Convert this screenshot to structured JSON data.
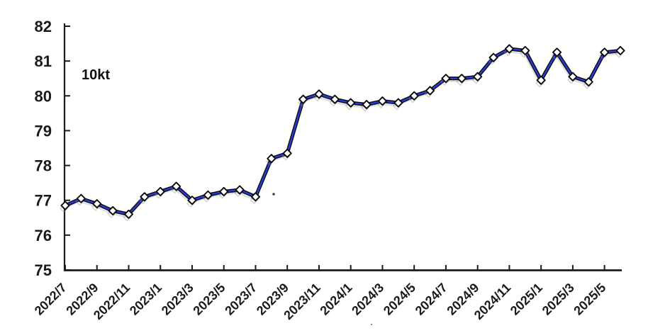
{
  "chart_data": {
    "type": "line",
    "title": "",
    "unit_label": "10kt",
    "xlabel": "",
    "ylabel": "",
    "grid": false,
    "legend": "none",
    "ylim": [
      75,
      82
    ],
    "yticks": [
      75,
      76,
      77,
      78,
      79,
      80,
      81,
      82
    ],
    "x": [
      "2022/7",
      "2022/8",
      "2022/9",
      "2022/10",
      "2022/11",
      "2022/12",
      "2023/1",
      "2023/2",
      "2023/3",
      "2023/4",
      "2023/5",
      "2023/6",
      "2023/7",
      "2023/8",
      "2023/9",
      "2023/10",
      "2023/11",
      "2023/12",
      "2024/1",
      "2024/2",
      "2024/3",
      "2024/4",
      "2024/5",
      "2024/6",
      "2024/7",
      "2024/8",
      "2024/9",
      "2024/10",
      "2024/11",
      "2024/12",
      "2025/1",
      "2025/2",
      "2025/3",
      "2025/4",
      "2025/5",
      "2025/6"
    ],
    "values": [
      76.85,
      77.05,
      76.9,
      76.7,
      76.6,
      77.1,
      77.25,
      77.4,
      77.0,
      77.15,
      77.25,
      77.3,
      77.1,
      78.2,
      78.35,
      79.9,
      80.05,
      79.9,
      79.8,
      79.75,
      79.85,
      79.8,
      80.0,
      80.15,
      80.5,
      80.5,
      80.55,
      81.1,
      81.35,
      81.3,
      80.45,
      81.25,
      80.55,
      80.4,
      81.25,
      81.3
    ],
    "x_tick_labels": [
      "2022/7",
      "2022/9",
      "2022/11",
      "2023/1",
      "2023/3",
      "2023/5",
      "2023/7",
      "2023/9",
      "2023/11",
      "2024/1",
      "2024/3",
      "2024/5",
      "2024/7",
      "2024/9",
      "2024/11",
      "2025/1",
      "2025/3",
      "2025/5"
    ],
    "marker": "diamond",
    "colors": {
      "line": "#2c3cce",
      "line_outline": "#0e0e14",
      "marker_fill": "#ffffff",
      "marker_stroke": "#0c0c10",
      "axis": "#1d1d1f",
      "label_text": "#1c1c1e",
      "ghost": "#8f8f8f"
    }
  }
}
